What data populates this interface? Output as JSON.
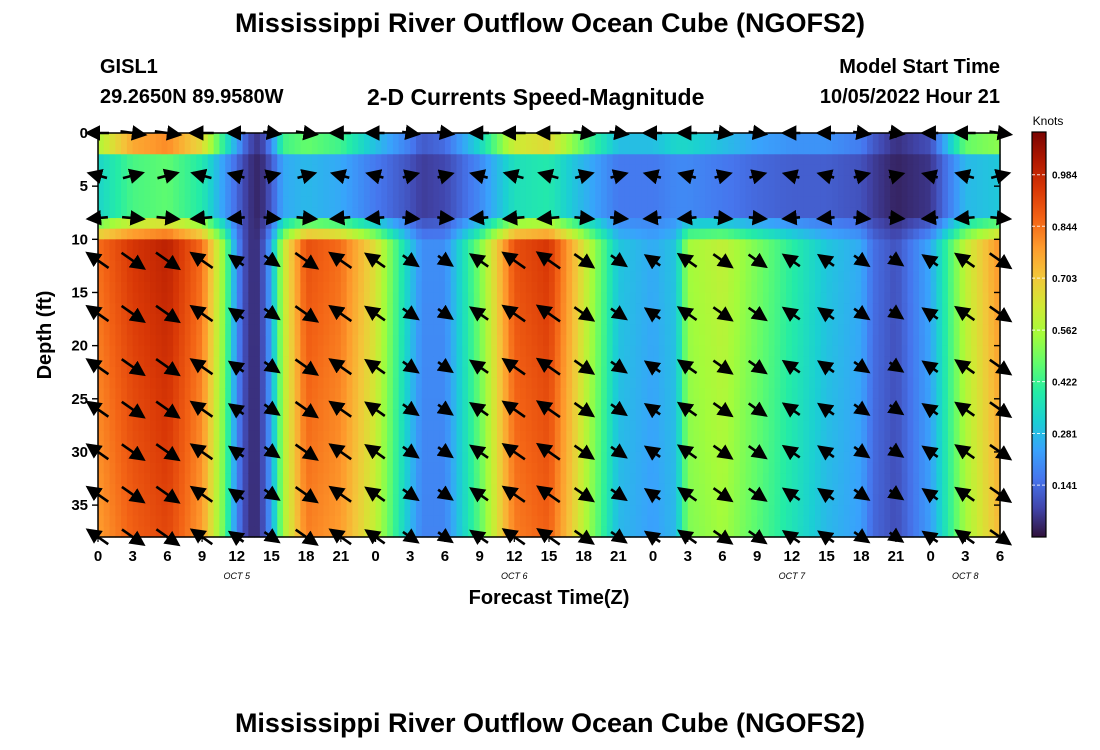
{
  "header": {
    "title": "Mississippi River Outflow Ocean Cube (NGOFS2)",
    "station_id": "GISL1",
    "station_coords": "29.2650N  89.9580W",
    "subtitle": "2-D Currents Speed-Magnitude",
    "model_start_label": "Model Start Time",
    "model_start_value": "10/05/2022 Hour 21"
  },
  "footer": {
    "title": "Mississippi River Outflow Ocean Cube (NGOFS2)"
  },
  "chart_data": {
    "type": "heatmap",
    "title": "2-D Currents Speed-Magnitude",
    "xlabel": "Forecast Time(Z)",
    "ylabel": "Depth (ft)",
    "x_range_hours": [
      0,
      78
    ],
    "xlim_label": [
      "10/05 00Z",
      "10/08 06Z"
    ],
    "ylim": [
      0,
      38
    ],
    "y_inverted": true,
    "y_ticks": [
      "0",
      "5",
      "10",
      "15",
      "20",
      "25",
      "30",
      "35"
    ],
    "x_ticks": [
      "0",
      "3",
      "6",
      "9",
      "12",
      "15",
      "18",
      "21",
      "0",
      "3",
      "6",
      "9",
      "12",
      "15",
      "18",
      "21",
      "0",
      "3",
      "6",
      "9",
      "12",
      "15",
      "18",
      "21",
      "0",
      "3",
      "6"
    ],
    "date_labels": [
      "OCT 5",
      "OCT 6",
      "OCT 7",
      "OCT 8"
    ],
    "colorbar": {
      "title": "Knots",
      "ticks": [
        "0.984",
        "0.844",
        "0.703",
        "0.562",
        "0.422",
        "0.281",
        "0.141"
      ],
      "range": [
        0.0,
        1.1
      ],
      "colormap": [
        "#30123b",
        "#4145ab",
        "#4675ed",
        "#39a2fc",
        "#1bcfd4",
        "#24eca6",
        "#61fc6c",
        "#a4fc3b",
        "#d1e834",
        "#f3c63a",
        "#fe9b2d",
        "#f36315",
        "#d93806",
        "#b11901",
        "#7a0402"
      ]
    },
    "speed_profile_hours": [
      0,
      3,
      6,
      9,
      11,
      12,
      13,
      14,
      15,
      16,
      18,
      21,
      24,
      27,
      28,
      30,
      33,
      36,
      39,
      41,
      45,
      48,
      50,
      51,
      54,
      57,
      60,
      63,
      66,
      67,
      69,
      72,
      75,
      78
    ],
    "upper_layer_speed_knots": [
      0.6,
      0.8,
      0.85,
      0.7,
      0.4,
      0.25,
      0.1,
      0.05,
      0.2,
      0.45,
      0.5,
      0.45,
      0.3,
      0.18,
      0.12,
      0.15,
      0.35,
      0.65,
      0.7,
      0.55,
      0.3,
      0.3,
      0.35,
      0.35,
      0.3,
      0.25,
      0.22,
      0.22,
      0.18,
      0.12,
      0.05,
      0.1,
      0.5,
      0.55
    ],
    "lower_layer_speed_knots": [
      0.85,
      0.95,
      1.0,
      0.85,
      0.5,
      0.2,
      0.05,
      0.05,
      0.25,
      0.6,
      0.9,
      0.85,
      0.65,
      0.3,
      0.2,
      0.2,
      0.5,
      0.9,
      0.95,
      0.75,
      0.3,
      0.25,
      0.3,
      0.55,
      0.6,
      0.5,
      0.4,
      0.3,
      0.25,
      0.15,
      0.1,
      0.25,
      0.6,
      0.8
    ],
    "vector_depth_levels_ft": [
      0,
      4,
      8,
      12,
      17,
      22,
      26,
      30,
      34,
      38
    ]
  }
}
